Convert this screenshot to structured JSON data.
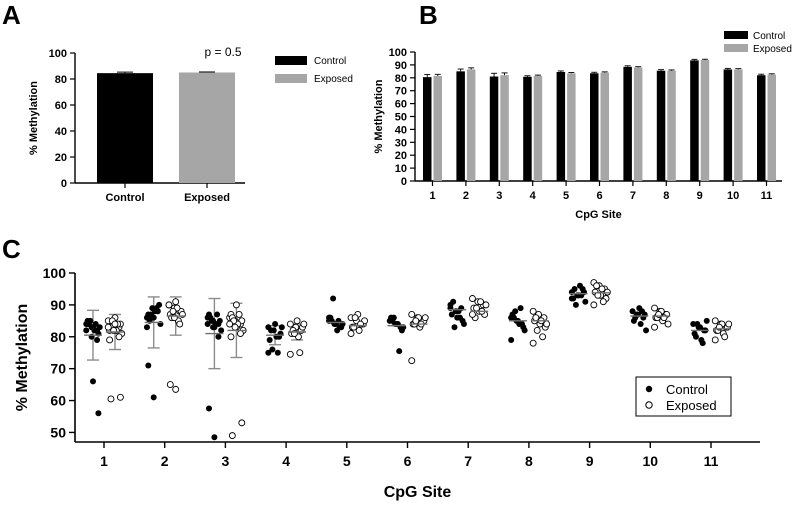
{
  "chart_data": [
    {
      "panel": "A",
      "type": "bar",
      "categories": [
        "Control",
        "Exposed"
      ],
      "values": [
        84.5,
        85.0
      ],
      "errors": [
        0.8,
        0.4
      ],
      "colors": [
        "#000000",
        "#a6a6a6"
      ],
      "ylabel": "% Methylation",
      "ylim": [
        0,
        100
      ],
      "yticks": [
        0,
        20,
        40,
        60,
        80,
        100
      ],
      "annotation": "p = 0.5",
      "legend": {
        "placement": "right",
        "entries": [
          {
            "label": "Control",
            "color": "#000000"
          },
          {
            "label": "Exposed",
            "color": "#a6a6a6"
          }
        ]
      }
    },
    {
      "panel": "B",
      "type": "bar",
      "categories": [
        "1",
        "2",
        "3",
        "4",
        "5",
        "6",
        "7",
        "8",
        "9",
        "10",
        "11"
      ],
      "series": [
        {
          "name": "Control",
          "color": "#000000",
          "values": [
            80.5,
            85.0,
            81.0,
            80.8,
            84.5,
            83.5,
            88.5,
            85.5,
            93.5,
            86.5,
            82.0
          ],
          "errors": [
            2.0,
            1.8,
            2.5,
            0.8,
            0.8,
            0.8,
            0.8,
            0.8,
            0.8,
            0.8,
            0.8
          ]
        },
        {
          "name": "Exposed",
          "color": "#a6a6a6",
          "values": [
            81.5,
            86.5,
            82.0,
            81.5,
            83.5,
            84.0,
            88.0,
            85.5,
            93.8,
            86.5,
            82.5
          ],
          "errors": [
            1.2,
            1.2,
            1.8,
            0.6,
            0.6,
            0.6,
            0.6,
            0.6,
            0.6,
            0.6,
            0.6
          ]
        }
      ],
      "xlabel": "CpG Site",
      "ylabel": "% Methylation",
      "ylim": [
        0,
        100
      ],
      "yticks": [
        0,
        10,
        20,
        30,
        40,
        50,
        60,
        70,
        80,
        90,
        100
      ],
      "legend": {
        "placement": "top-right"
      }
    },
    {
      "panel": "C",
      "type": "scatter",
      "categories": [
        "1",
        "2",
        "3",
        "4",
        "5",
        "6",
        "7",
        "8",
        "9",
        "10",
        "11"
      ],
      "xlabel": "CpG Site",
      "ylabel": "% Methylation",
      "ylim": [
        47,
        100
      ],
      "yticks": [
        50,
        60,
        70,
        80,
        90,
        100
      ],
      "legend": {
        "placement": "bottom-right"
      },
      "series": [
        {
          "name": "Control",
          "marker": "filled-circle",
          "means": [
            80.5,
            84.5,
            81.0,
            80.5,
            84.5,
            83.5,
            88.5,
            85.0,
            93.5,
            86.5,
            82.0
          ],
          "sd": [
            7.8,
            8.0,
            11.0,
            3.0,
            0,
            0,
            0,
            0,
            0,
            0,
            0
          ],
          "points": [
            [
              84,
              83,
              82,
              85,
              83,
              81,
              84,
              82,
              83,
              85,
              84,
              82,
              80,
              79,
              84,
              66,
              56
            ],
            [
              86,
              89,
              88,
              87,
              86,
              90,
              85,
              88,
              84,
              87,
              89,
              83,
              86,
              88,
              71,
              61
            ],
            [
              86,
              85,
              84,
              87,
              83,
              85,
              86,
              84,
              82,
              85,
              87,
              84,
              83,
              80,
              57.5,
              48.5
            ],
            [
              83,
              82,
              80,
              79,
              84,
              81,
              82,
              80,
              83,
              76,
              75,
              75
            ],
            [
              85,
              84,
              83,
              86,
              84,
              83,
              85,
              82,
              84,
              92,
              85,
              86
            ],
            [
              85,
              84,
              83,
              86,
              84,
              82,
              85,
              84,
              83,
              86,
              75.5
            ],
            [
              90,
              88,
              89,
              87,
              86,
              85,
              91,
              88,
              84,
              83,
              86,
              89
            ],
            [
              86,
              85,
              84,
              87,
              85,
              83,
              86,
              84,
              82,
              88,
              89,
              79
            ],
            [
              94,
              93,
              95,
              92,
              93,
              94,
              95,
              96,
              91,
              90,
              93,
              92
            ],
            [
              88,
              87,
              86,
              85,
              89,
              87,
              86,
              84,
              82,
              87,
              88
            ],
            [
              84,
              83,
              82,
              81,
              83,
              82,
              80,
              79,
              85,
              84,
              78
            ]
          ]
        },
        {
          "name": "Exposed",
          "marker": "open-circle",
          "means": [
            81.5,
            86.5,
            82.0,
            81.5,
            83.5,
            84.0,
            88.0,
            85.0,
            93.8,
            86.5,
            82.5
          ],
          "sd": [
            5.5,
            6.0,
            8.5,
            2.5,
            0,
            0,
            0,
            0,
            0,
            0,
            0
          ],
          "points": [
            [
              85,
              84,
              83,
              82,
              86,
              84,
              83,
              82,
              81,
              85,
              84,
              83,
              82,
              80,
              79,
              84,
              61,
              60.5
            ],
            [
              90,
              89,
              88,
              87,
              91,
              88,
              86,
              89,
              87,
              88,
              85,
              90,
              86,
              84,
              65,
              63.5
            ],
            [
              86,
              85,
              84,
              87,
              83,
              85,
              86,
              84,
              82,
              85,
              87,
              84,
              83,
              81,
              80,
              90,
              53,
              49
            ],
            [
              84,
              83,
              82,
              81,
              85,
              83,
              82,
              80,
              84,
              81,
              75,
              74.5
            ],
            [
              86,
              85,
              84,
              83,
              87,
              84,
              83,
              82,
              85,
              86,
              84,
              81
            ],
            [
              87,
              86,
              85,
              84,
              86,
              85,
              84,
              83,
              86,
              85,
              84,
              72.5
            ],
            [
              92,
              91,
              90,
              89,
              88,
              87,
              86,
              91,
              90,
              89,
              88,
              87
            ],
            [
              88,
              87,
              86,
              85,
              84,
              83,
              86,
              85,
              84,
              82,
              80,
              78
            ],
            [
              97,
              96,
              95,
              94,
              93,
              92,
              96,
              95,
              94,
              93,
              91,
              90
            ],
            [
              89,
              88,
              87,
              86,
              88,
              87,
              86,
              85,
              84,
              87,
              86,
              83
            ],
            [
              85,
              84,
              83,
              82,
              84,
              83,
              82,
              81,
              84,
              83,
              80,
              79
            ]
          ]
        }
      ]
    }
  ],
  "panels": {
    "a": {
      "letter": "A"
    },
    "b": {
      "letter": "B"
    },
    "c": {
      "letter": "C"
    }
  }
}
